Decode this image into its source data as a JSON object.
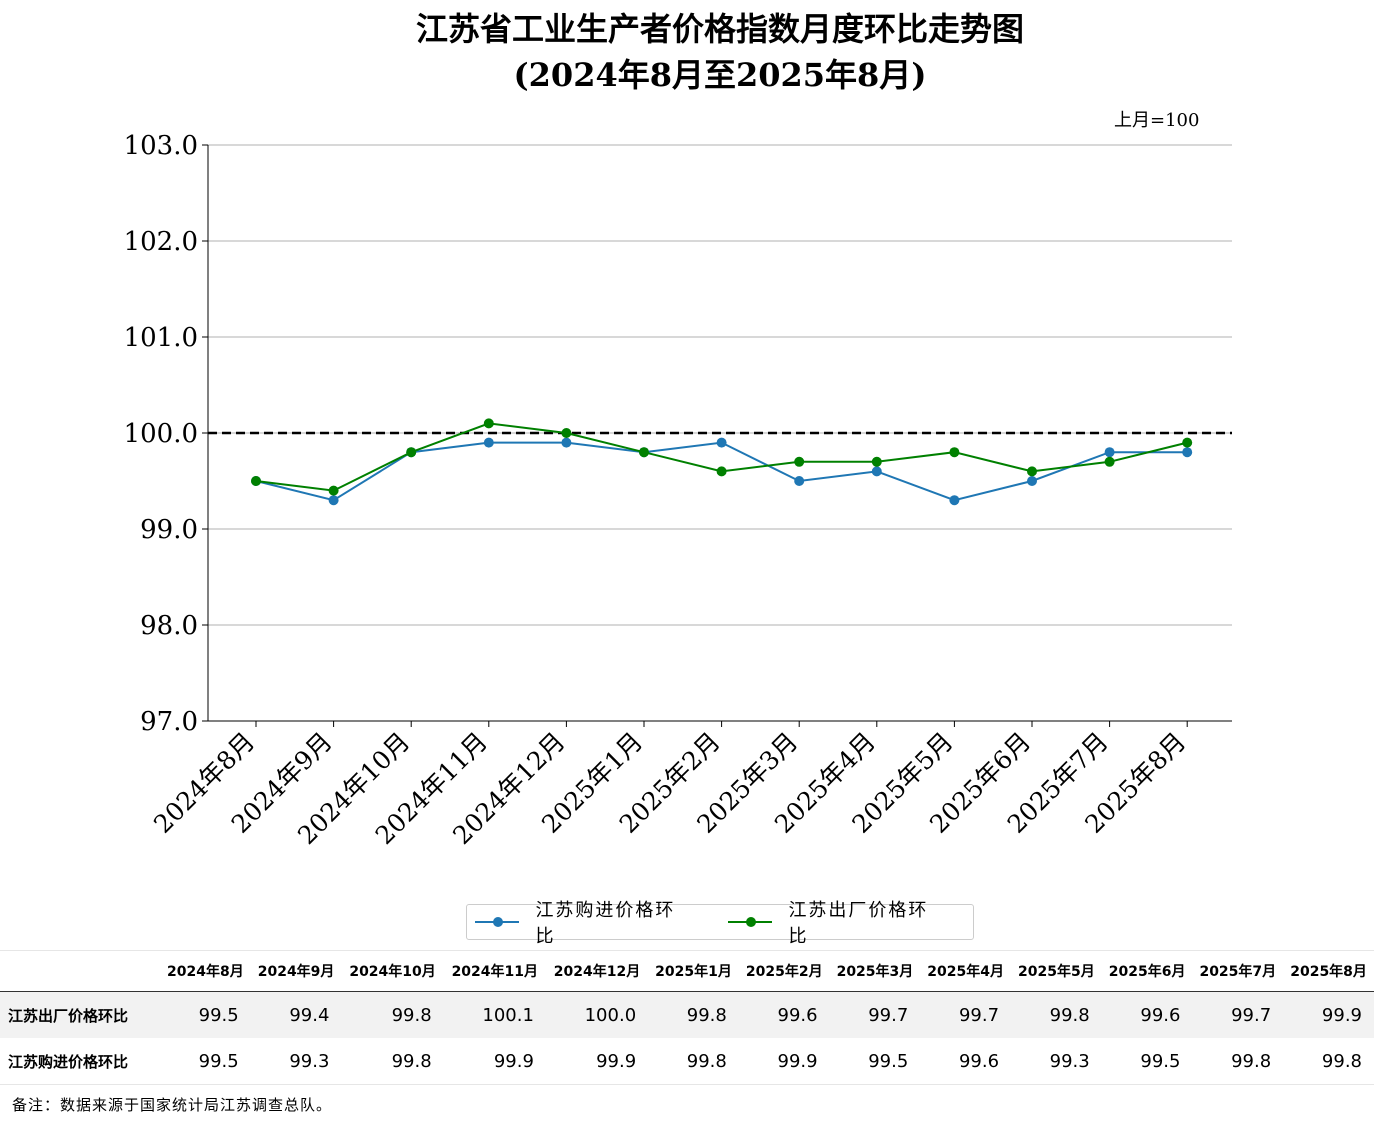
{
  "chart_data": {
    "type": "line",
    "title_lines": [
      "江苏省工业生产者价格指数月度环比走势图",
      "(2024年8月至2025年8月)"
    ],
    "unit_note": "上月=100",
    "categories": [
      "2024年8月",
      "2024年9月",
      "2024年10月",
      "2024年11月",
      "2024年12月",
      "2025年1月",
      "2025年2月",
      "2025年3月",
      "2025年4月",
      "2025年5月",
      "2025年6月",
      "2025年7月",
      "2025年8月"
    ],
    "yticks": [
      "97.0",
      "98.0",
      "99.0",
      "100.0",
      "101.0",
      "102.0",
      "103.0"
    ],
    "ylim": [
      97,
      103
    ],
    "reference_line": 100,
    "grid": "horizontal",
    "legend_position": "bottom-center",
    "series": [
      {
        "name": "江苏购进价格环比",
        "color": "#1f77b4",
        "values": [
          99.5,
          99.3,
          99.8,
          99.9,
          99.9,
          99.8,
          99.9,
          99.5,
          99.6,
          99.3,
          99.5,
          99.8,
          99.8
        ]
      },
      {
        "name": "江苏出厂价格环比",
        "color": "#008000",
        "values": [
          99.5,
          99.4,
          99.8,
          100.1,
          100.0,
          99.8,
          99.6,
          99.7,
          99.7,
          99.8,
          99.6,
          99.7,
          99.9
        ]
      }
    ]
  },
  "table": {
    "headers": [
      "2024年8月",
      "2024年9月",
      "2024年10月",
      "2024年11月",
      "2024年12月",
      "2025年1月",
      "2025年2月",
      "2025年3月",
      "2025年4月",
      "2025年5月",
      "2025年6月",
      "2025年7月",
      "2025年8月"
    ],
    "rows": [
      {
        "label": "江苏出厂价格环比",
        "values": [
          "99.5",
          "99.4",
          "99.8",
          "100.1",
          "100.0",
          "99.8",
          "99.6",
          "99.7",
          "99.7",
          "99.8",
          "99.6",
          "99.7",
          "99.9"
        ]
      },
      {
        "label": "江苏购进价格环比",
        "values": [
          "99.5",
          "99.3",
          "99.8",
          "99.9",
          "99.9",
          "99.8",
          "99.9",
          "99.5",
          "99.6",
          "99.3",
          "99.5",
          "99.8",
          "99.8"
        ]
      }
    ]
  },
  "note": "备注：数据来源于国家统计局江苏调查总队。"
}
